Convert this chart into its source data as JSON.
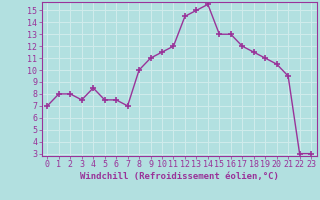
{
  "x": [
    0,
    1,
    2,
    3,
    4,
    5,
    6,
    7,
    8,
    9,
    10,
    11,
    12,
    13,
    14,
    15,
    16,
    17,
    18,
    19,
    20,
    21,
    22,
    23
  ],
  "y": [
    7.0,
    8.0,
    8.0,
    7.5,
    8.5,
    7.5,
    7.5,
    7.0,
    10.0,
    11.0,
    11.5,
    12.0,
    14.5,
    15.0,
    15.5,
    13.0,
    13.0,
    12.0,
    11.5,
    11.0,
    10.5,
    9.5,
    3.0,
    3.0
  ],
  "line_color": "#993399",
  "marker": "+",
  "marker_size": 4,
  "marker_lw": 1.2,
  "bg_color": "#b2e0e0",
  "grid_color": "#d0ecec",
  "title": "",
  "xlabel": "Windchill (Refroidissement éolien,°C)",
  "ylabel": "",
  "xlim": [
    -0.5,
    23.5
  ],
  "ylim": [
    2.8,
    15.7
  ],
  "yticks": [
    3,
    4,
    5,
    6,
    7,
    8,
    9,
    10,
    11,
    12,
    13,
    14,
    15
  ],
  "xticks": [
    0,
    1,
    2,
    3,
    4,
    5,
    6,
    7,
    8,
    9,
    10,
    11,
    12,
    13,
    14,
    15,
    16,
    17,
    18,
    19,
    20,
    21,
    22,
    23
  ],
  "tick_color": "#993399",
  "label_color": "#993399",
  "axis_color": "#993399",
  "xlabel_fontsize": 6.5,
  "tick_fontsize": 6.0,
  "line_width": 1.0
}
